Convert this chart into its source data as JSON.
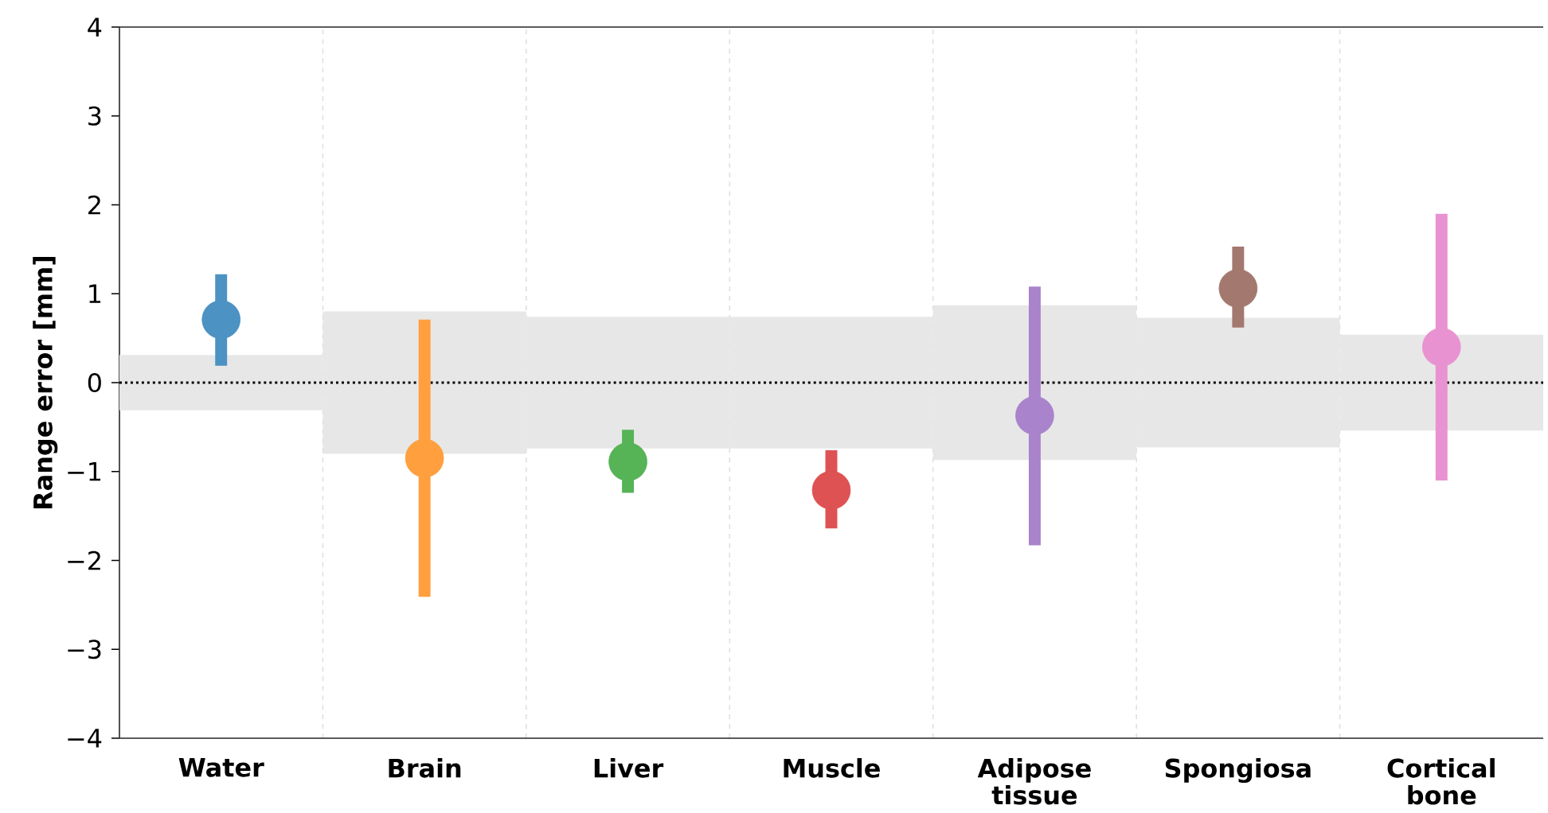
{
  "chart_data": {
    "type": "scatter",
    "ylabel": "Range error [mm]",
    "categories": [
      "Water",
      "Brain",
      "Liver",
      "Muscle",
      "Adipose tissue",
      "Spongiosa",
      "Cortical bone"
    ],
    "ylim": [
      -4,
      4
    ],
    "yticks": [
      {
        "value": -4,
        "label": "−4"
      },
      {
        "value": -3,
        "label": "−3"
      },
      {
        "value": -2,
        "label": "−2"
      },
      {
        "value": -1,
        "label": "−1"
      },
      0,
      1,
      2,
      3,
      4
    ],
    "grid": "x",
    "marker": "circle",
    "ref_lines": [
      {
        "axis": "y",
        "value": 0,
        "line_style": "dotted",
        "color": "#000000"
      }
    ],
    "series": [
      {
        "type": "bar",
        "color": "#e7e7e7",
        "base": [
          -0.31,
          -0.8,
          -0.74,
          -0.74,
          -0.87,
          -0.73,
          -0.54
        ],
        "values": [
          0.62,
          1.6,
          1.48,
          1.48,
          1.74,
          1.46,
          1.08
        ]
      },
      {
        "colors": [
          "#4c92c3",
          "#ff9f3e",
          "#56b356",
          "#de5253",
          "#a983cb",
          "#a3786f",
          "#e992d1"
        ],
        "values": [
          0.71,
          -0.85,
          -0.89,
          -1.21,
          -0.37,
          1.06,
          0.4
        ],
        "errors": [
          [
            0.19,
            1.22
          ],
          [
            -2.41,
            0.71
          ],
          [
            -1.24,
            -0.53
          ],
          [
            -1.64,
            -0.76
          ],
          [
            -1.83,
            1.08
          ],
          [
            0.62,
            1.53
          ],
          [
            -1.1,
            1.9
          ]
        ]
      }
    ]
  }
}
